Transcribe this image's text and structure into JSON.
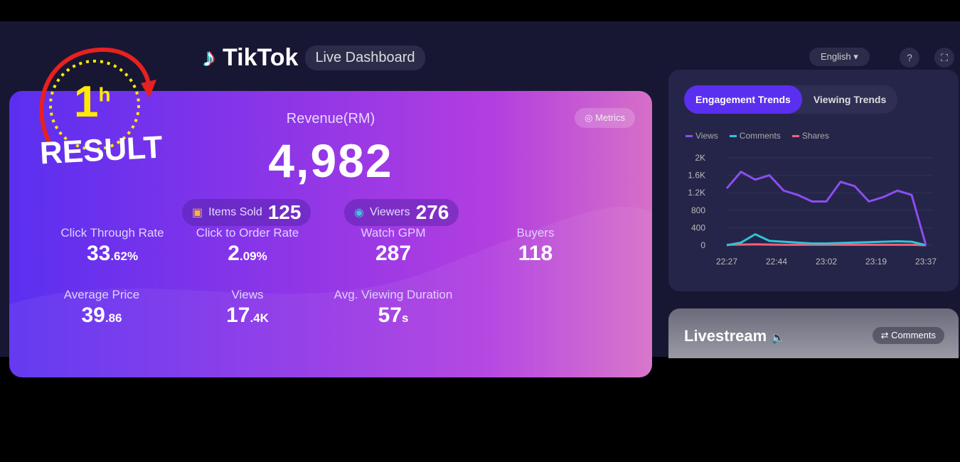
{
  "header": {
    "brand": "TikTok",
    "subtitle": "Live Dashboard",
    "language": "English",
    "help_icon": "question-icon",
    "fullscreen_icon": "expand-icon"
  },
  "hero": {
    "revenue_label": "Revenue(RM)",
    "revenue": "4,982",
    "metrics_button": "Metrics",
    "items_sold_label": "Items Sold",
    "items_sold": "125",
    "viewers_label": "Viewers",
    "viewers": "276",
    "stats": [
      {
        "label": "Click Through Rate",
        "value": "33",
        "suffix": ".62%"
      },
      {
        "label": "Click to Order Rate",
        "value": "2",
        "suffix": ".09%"
      },
      {
        "label": "Watch GPM",
        "value": "287",
        "suffix": ""
      },
      {
        "label": "Buyers",
        "value": "118",
        "suffix": ""
      },
      {
        "label": "Average Price",
        "value": "39",
        "suffix": ".86"
      },
      {
        "label": "Views",
        "value": "17",
        "suffix": ".4K"
      },
      {
        "label": "Avg. Viewing Duration",
        "value": "57",
        "suffix": "s"
      }
    ]
  },
  "trends": {
    "tabs": [
      "Engagement Trends",
      "Viewing Trends"
    ],
    "active_tab": 0
  },
  "chart_data": {
    "type": "line",
    "x_ticks": [
      "22:27",
      "22:44",
      "23:02",
      "23:19",
      "23:37"
    ],
    "y_ticks": [
      "0",
      "400",
      "800",
      "1.2K",
      "1.6K",
      "2K"
    ],
    "ylim": [
      0,
      2000
    ],
    "legend": "top-left",
    "grid": true,
    "series": [
      {
        "name": "Views",
        "color": "#8b4ef0",
        "values": [
          1300,
          1680,
          1500,
          1600,
          1250,
          1150,
          1000,
          1000,
          1450,
          1350,
          1000,
          1100,
          1250,
          1150,
          0
        ]
      },
      {
        "name": "Comments",
        "color": "#2ec4d6",
        "values": [
          0,
          60,
          250,
          100,
          80,
          60,
          40,
          40,
          50,
          60,
          70,
          80,
          90,
          80,
          0
        ]
      },
      {
        "name": "Shares",
        "color": "#f0607a",
        "values": [
          10,
          15,
          20,
          15,
          10,
          10,
          10,
          10,
          10,
          10,
          10,
          10,
          10,
          10,
          0
        ]
      }
    ]
  },
  "livestream": {
    "title": "Livestream",
    "comments_button": "Comments"
  },
  "overlay": {
    "hours": "1",
    "unit": "h",
    "text": "RESULT"
  }
}
